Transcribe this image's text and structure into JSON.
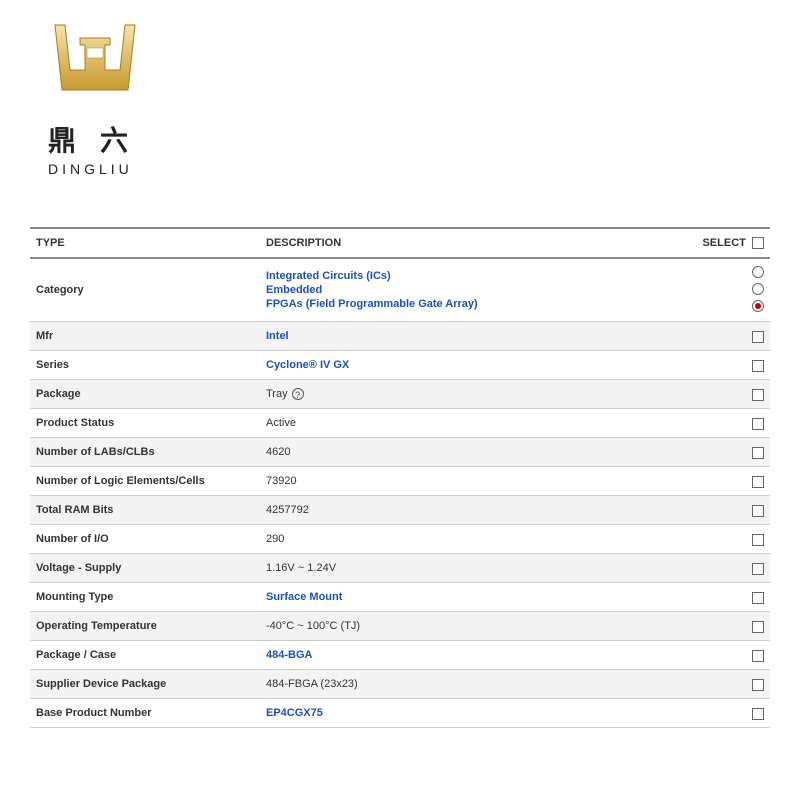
{
  "logo": {
    "cn": "鼎六",
    "en": "DINGLIU",
    "gold_color": "#d4a849",
    "gold_light": "#f5e4a8"
  },
  "headers": {
    "type": "TYPE",
    "description": "DESCRIPTION",
    "select": "SELECT"
  },
  "category": {
    "label": "Category",
    "lines": [
      "Integrated Circuits (ICs)",
      "Embedded",
      "FPGAs (Field Programmable Gate Array)"
    ]
  },
  "rows": [
    {
      "label": "Mfr",
      "value": "Intel",
      "link": true,
      "alt": true,
      "help": false
    },
    {
      "label": "Series",
      "value": "Cyclone® IV GX",
      "link": true,
      "alt": false,
      "help": false
    },
    {
      "label": "Package",
      "value": "Tray",
      "link": false,
      "alt": true,
      "help": true
    },
    {
      "label": "Product Status",
      "value": "Active",
      "link": false,
      "alt": false,
      "help": false
    },
    {
      "label": "Number of LABs/CLBs",
      "value": "4620",
      "link": false,
      "alt": true,
      "help": false
    },
    {
      "label": "Number of Logic Elements/Cells",
      "value": "73920",
      "link": false,
      "alt": false,
      "help": false
    },
    {
      "label": "Total RAM Bits",
      "value": "4257792",
      "link": false,
      "alt": true,
      "help": false
    },
    {
      "label": "Number of I/O",
      "value": "290",
      "link": false,
      "alt": false,
      "help": false
    },
    {
      "label": "Voltage - Supply",
      "value": "1.16V ~ 1.24V",
      "link": false,
      "alt": true,
      "help": false
    },
    {
      "label": "Mounting Type",
      "value": "Surface Mount",
      "link": true,
      "alt": false,
      "help": false
    },
    {
      "label": "Operating Temperature",
      "value": "-40°C ~ 100°C (TJ)",
      "link": false,
      "alt": true,
      "help": false
    },
    {
      "label": "Package / Case",
      "value": "484-BGA",
      "link": true,
      "alt": false,
      "help": false
    },
    {
      "label": "Supplier Device Package",
      "value": "484-FBGA (23x23)",
      "link": false,
      "alt": true,
      "help": false
    },
    {
      "label": "Base Product Number",
      "value": "EP4CGX75",
      "link": true,
      "alt": false,
      "help": false
    }
  ]
}
